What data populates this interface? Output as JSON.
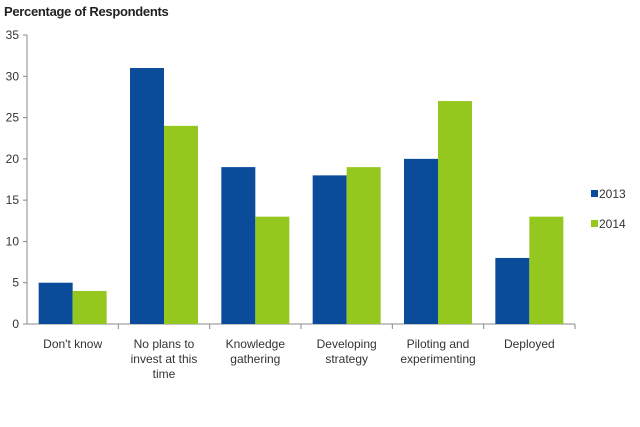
{
  "chart_data": {
    "type": "bar",
    "title": "Percentage of Respondents",
    "categories": [
      [
        "Don't know"
      ],
      [
        "No plans to",
        "invest at this",
        "time"
      ],
      [
        "Knowledge",
        "gathering"
      ],
      [
        "Developing",
        "strategy"
      ],
      [
        "Piloting and",
        "experimenting"
      ],
      [
        "Deployed"
      ]
    ],
    "series": [
      {
        "name": "2013",
        "color": "#0b4c9a",
        "values": [
          5,
          31,
          19,
          18,
          20,
          8
        ]
      },
      {
        "name": "2014",
        "color": "#94c81f",
        "values": [
          4,
          24,
          13,
          19,
          27,
          13
        ]
      }
    ],
    "ylim": [
      0,
      35
    ],
    "yticks": [
      0,
      5,
      10,
      15,
      20,
      25,
      30,
      35
    ],
    "grid": false,
    "legend": "right"
  }
}
